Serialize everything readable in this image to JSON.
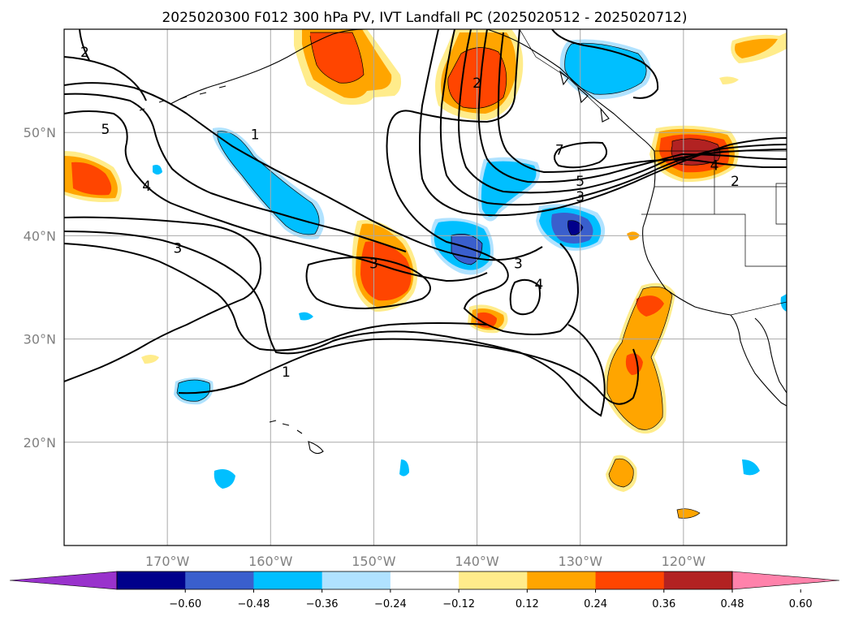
{
  "title": "2025020300 F012 300 hPa PV, IVT Landfall PC (2025020512 - 2025020712)",
  "map": {
    "lon_range": [
      -180,
      -110
    ],
    "lat_range": [
      10,
      60
    ],
    "lon_ticks": [
      -170,
      -160,
      -150,
      -140,
      -130,
      -120
    ],
    "lon_tick_labels": [
      "170°W",
      "160°W",
      "150°W",
      "140°W",
      "130°W",
      "120°W"
    ],
    "lat_ticks": [
      20,
      30,
      40,
      50
    ],
    "lat_tick_labels": [
      "20°N",
      "30°N",
      "40°N",
      "50°N"
    ],
    "gridlines": true
  },
  "colorbar": {
    "tick_labels": [
      "−0.60",
      "−0.48",
      "−0.36",
      "−0.24",
      "−0.12",
      "0.12",
      "0.24",
      "0.36",
      "0.48",
      "0.60"
    ],
    "colors": [
      "#9932cc",
      "#00008b",
      "#3a5fcd",
      "#00bfff",
      "#b0e2ff",
      "#ffffff",
      "#ffec8b",
      "#ffa500",
      "#ff4500",
      "#b22222",
      "#ff82ab"
    ],
    "extend": "both"
  },
  "contour_labels": [
    {
      "text": "1",
      "lon": -161.5,
      "lat": 49.5
    },
    {
      "text": "5",
      "lon": -176.0,
      "lat": 50.0
    },
    {
      "text": "4",
      "lon": -172.0,
      "lat": 44.5
    },
    {
      "text": "3",
      "lon": -169.0,
      "lat": 38.5
    },
    {
      "text": "3",
      "lon": -150.0,
      "lat": 37.0
    },
    {
      "text": "2",
      "lon": -140.0,
      "lat": 54.5
    },
    {
      "text": "7",
      "lon": -132.0,
      "lat": 48.0
    },
    {
      "text": "5",
      "lon": -130.0,
      "lat": 45.0
    },
    {
      "text": "3",
      "lon": -130.0,
      "lat": 43.5
    },
    {
      "text": "4",
      "lon": -117.0,
      "lat": 46.5
    },
    {
      "text": "2",
      "lon": -115.0,
      "lat": 45.0
    },
    {
      "text": "3",
      "lon": -136.0,
      "lat": 37.0
    },
    {
      "text": "4",
      "lon": -134.0,
      "lat": 35.0
    },
    {
      "text": "1",
      "lon": -158.5,
      "lat": 26.5
    },
    {
      "text": "2",
      "lon": -178.0,
      "lat": 57.5
    }
  ]
}
